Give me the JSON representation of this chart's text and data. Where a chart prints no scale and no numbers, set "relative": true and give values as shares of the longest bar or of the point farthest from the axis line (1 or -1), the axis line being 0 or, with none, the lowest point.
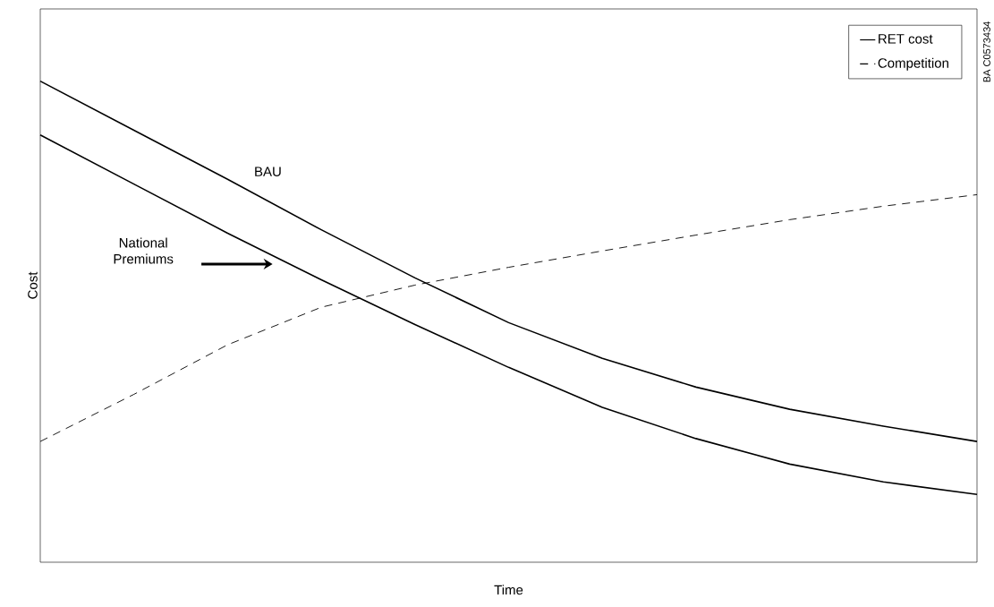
{
  "chart_data": {
    "type": "line",
    "relative": true,
    "xlabel": "Time",
    "ylabel": "Cost",
    "categories": [
      null,
      null,
      null,
      null,
      null,
      null,
      null,
      null,
      null,
      null,
      null
    ],
    "series": [
      {
        "name": "RET cost",
        "color": "#000000",
        "line_style": "solid",
        "values": [
          1,
          0.898,
          0.796,
          0.691,
          0.591,
          0.498,
          0.424,
          0.364,
          0.318,
          0.283,
          0.251
        ]
      },
      {
        "color": "#000000",
        "line_style": "solid",
        "values": [
          0.888,
          0.786,
          0.684,
          0.587,
          0.494,
          0.405,
          0.322,
          0.257,
          0.204,
          0.167,
          0.141
        ]
      },
      {
        "name": "Competition",
        "color": "#000000",
        "line_style": "dashed",
        "values": [
          0.251,
          0.349,
          0.452,
          0.53,
          0.576,
          0.613,
          0.647,
          0.68,
          0.712,
          0.74,
          0.764
        ]
      }
    ],
    "legend": "top right",
    "annotations": [
      "BAU",
      "National Premiums",
      "BA C0573434"
    ]
  }
}
